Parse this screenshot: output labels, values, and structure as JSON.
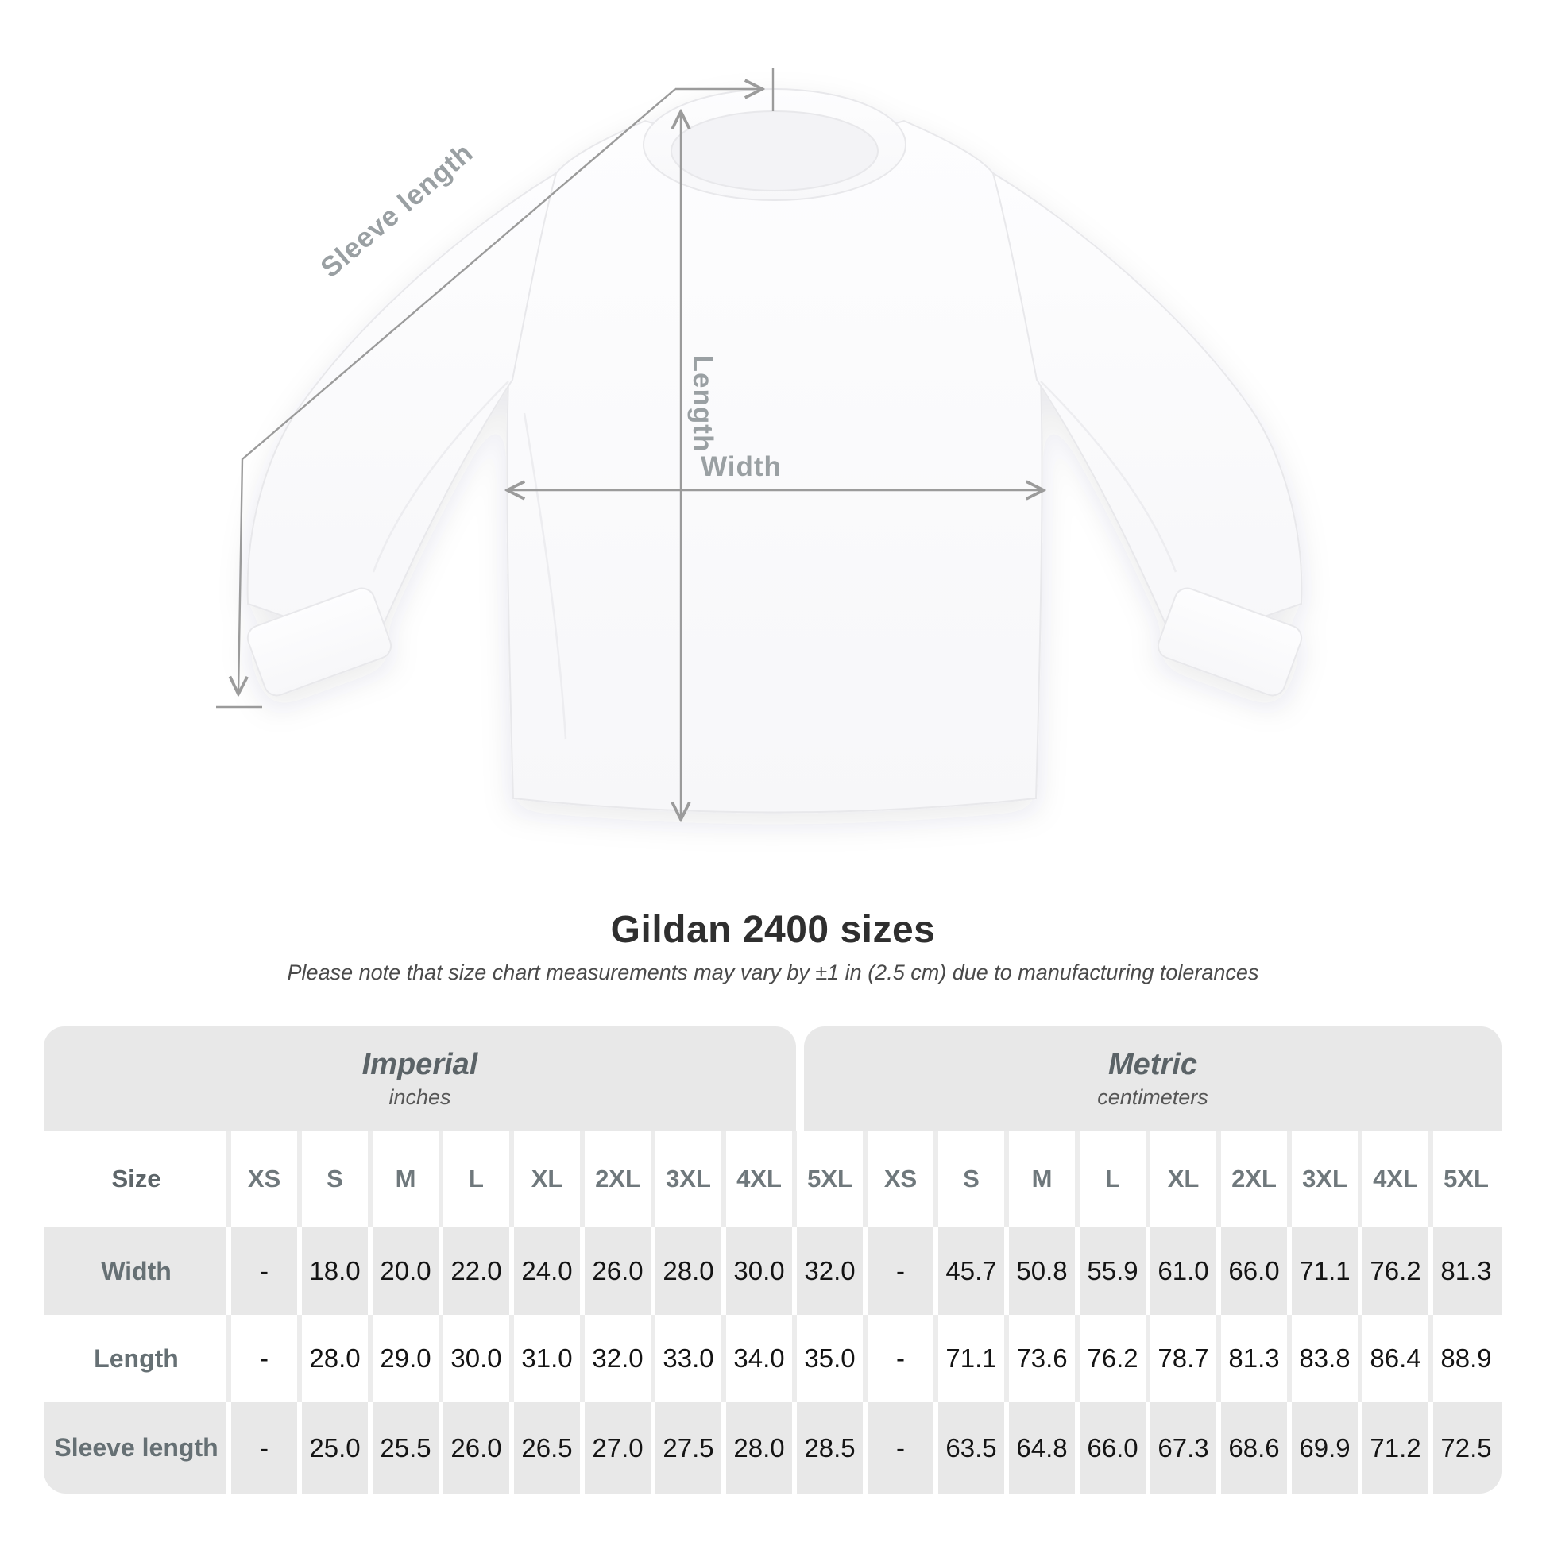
{
  "diagram": {
    "shirt_color": "#fcfcfd",
    "line_color": "#9b9b9b",
    "labels": {
      "sleeve_length": "Sleeve length",
      "length": "Length",
      "width": "Width"
    }
  },
  "heading": {
    "title": "Gildan 2400 sizes",
    "subtitle": "Please note that size chart measurements may vary by ±1 in (2.5 cm) due to manufacturing tolerances"
  },
  "table": {
    "unit_sections": [
      {
        "title": "Imperial",
        "subtitle": "inches"
      },
      {
        "title": "Metric",
        "subtitle": "centimeters"
      }
    ],
    "size_header": {
      "label": "Size",
      "columns": [
        "XS",
        "S",
        "M",
        "L",
        "XL",
        "2XL",
        "3XL",
        "4XL",
        "5XL",
        "XS",
        "S",
        "M",
        "L",
        "XL",
        "2XL",
        "3XL",
        "4XL",
        "5XL"
      ]
    },
    "rows": [
      {
        "label": "Width",
        "values": [
          "-",
          "18.0",
          "20.0",
          "22.0",
          "24.0",
          "26.0",
          "28.0",
          "30.0",
          "32.0",
          "-",
          "45.7",
          "50.8",
          "55.9",
          "61.0",
          "66.0",
          "71.1",
          "76.2",
          "81.3"
        ]
      },
      {
        "label": "Length",
        "values": [
          "-",
          "28.0",
          "29.0",
          "30.0",
          "31.0",
          "32.0",
          "33.0",
          "34.0",
          "35.0",
          "-",
          "71.1",
          "73.6",
          "76.2",
          "78.7",
          "81.3",
          "83.8",
          "86.4",
          "88.9"
        ]
      },
      {
        "label": "Sleeve length",
        "values": [
          "-",
          "25.0",
          "25.5",
          "26.0",
          "26.5",
          "27.0",
          "27.5",
          "28.0",
          "28.5",
          "-",
          "63.5",
          "64.8",
          "66.0",
          "67.3",
          "68.6",
          "69.9",
          "71.2",
          "72.5"
        ]
      }
    ]
  },
  "chart_data": {
    "type": "table",
    "title": "Gildan 2400 sizes",
    "note": "Please note that size chart measurements may vary by ±1 in (2.5 cm) due to manufacturing tolerances",
    "unit_groups": [
      {
        "name": "Imperial",
        "unit": "inches"
      },
      {
        "name": "Metric",
        "unit": "centimeters"
      }
    ],
    "columns": [
      "XS",
      "S",
      "M",
      "L",
      "XL",
      "2XL",
      "3XL",
      "4XL",
      "5XL"
    ],
    "rows": [
      {
        "label": "Width",
        "imperial": [
          null,
          18.0,
          20.0,
          22.0,
          24.0,
          26.0,
          28.0,
          30.0,
          32.0
        ],
        "metric": [
          null,
          45.7,
          50.8,
          55.9,
          61.0,
          66.0,
          71.1,
          76.2,
          81.3
        ]
      },
      {
        "label": "Length",
        "imperial": [
          null,
          28.0,
          29.0,
          30.0,
          31.0,
          32.0,
          33.0,
          34.0,
          35.0
        ],
        "metric": [
          null,
          71.1,
          73.6,
          76.2,
          78.7,
          81.3,
          83.8,
          86.4,
          88.9
        ]
      },
      {
        "label": "Sleeve length",
        "imperial": [
          null,
          25.0,
          25.5,
          26.0,
          26.5,
          27.0,
          27.5,
          28.0,
          28.5
        ],
        "metric": [
          null,
          63.5,
          64.8,
          66.0,
          67.3,
          68.6,
          69.9,
          71.2,
          72.5
        ]
      }
    ]
  }
}
